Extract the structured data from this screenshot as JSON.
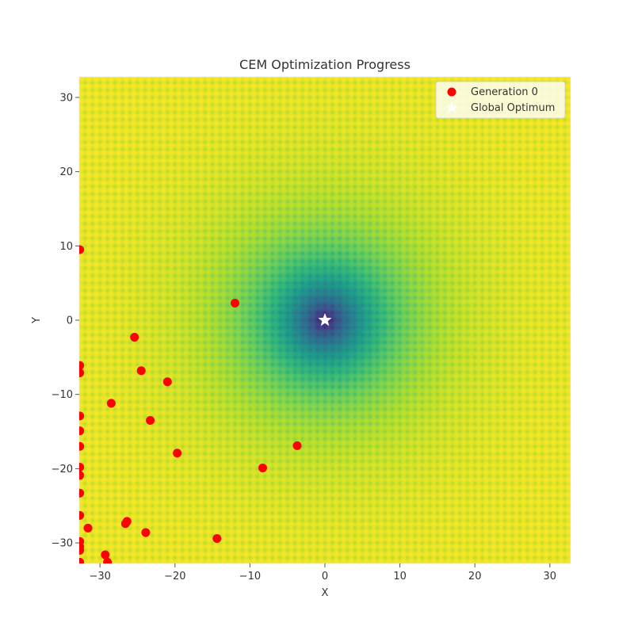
{
  "chart_data": {
    "type": "scatter",
    "title": "CEM Optimization Progress",
    "xlabel": "X",
    "ylabel": "Y",
    "xlim": [
      -32.768,
      32.768
    ],
    "ylim": [
      -32.768,
      32.768
    ],
    "xticks": [
      -30,
      -20,
      -10,
      0,
      10,
      20,
      30
    ],
    "yticks": [
      -30,
      -20,
      -10,
      0,
      10,
      20,
      30
    ],
    "grid": false,
    "legend_position": "top-right",
    "background": {
      "type": "heatmap",
      "function": "ackley",
      "colormap": "viridis"
    },
    "series": [
      {
        "name": "Generation 0",
        "color": "#ff0000",
        "marker": "circle",
        "points": [
          [
            -32.7,
            9.5
          ],
          [
            -12.0,
            2.3
          ],
          [
            -25.4,
            -2.3
          ],
          [
            -24.5,
            -6.8
          ],
          [
            -21.0,
            -8.3
          ],
          [
            -28.5,
            -11.2
          ],
          [
            -23.3,
            -13.5
          ],
          [
            -19.7,
            -17.9
          ],
          [
            -3.7,
            -16.9
          ],
          [
            -8.3,
            -19.9
          ],
          [
            -32.7,
            -6.1
          ],
          [
            -32.7,
            -7.1
          ],
          [
            -32.7,
            -12.9
          ],
          [
            -32.7,
            -14.9
          ],
          [
            -32.7,
            -17.0
          ],
          [
            -32.7,
            -19.8
          ],
          [
            -32.7,
            -20.9
          ],
          [
            -32.7,
            -23.3
          ],
          [
            -32.7,
            -26.3
          ],
          [
            -31.6,
            -28.0
          ],
          [
            -26.4,
            -27.1
          ],
          [
            -26.6,
            -27.4
          ],
          [
            -23.9,
            -28.6
          ],
          [
            -14.4,
            -29.4
          ],
          [
            -32.7,
            -29.8
          ],
          [
            -32.7,
            -30.5
          ],
          [
            -32.7,
            -31.0
          ],
          [
            -29.3,
            -31.6
          ],
          [
            -29.0,
            -32.6
          ],
          [
            -32.7,
            -32.6
          ]
        ]
      },
      {
        "name": "Global Optimum",
        "color": "#ffffff",
        "marker": "star",
        "points": [
          [
            0,
            0
          ]
        ]
      }
    ]
  }
}
